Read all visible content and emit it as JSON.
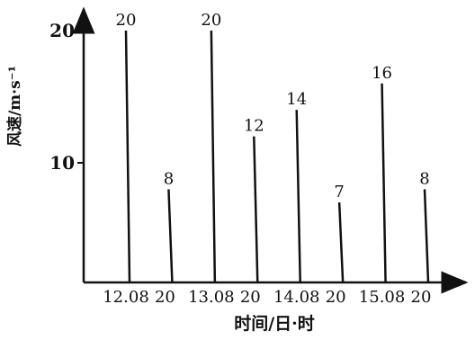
{
  "chart_data": {
    "type": "bar",
    "title": "",
    "xlabel": "时间/日·时",
    "ylabel": "风速/m·s⁻¹",
    "ylim": [
      0,
      22
    ],
    "yticks": [
      {
        "value": 10,
        "label": "10"
      },
      {
        "value": 20,
        "label": "20"
      }
    ],
    "x_dates": [
      {
        "hour": 8,
        "label": "12.08"
      },
      {
        "hour": 32,
        "label": "13.08"
      },
      {
        "hour": 56,
        "label": "14.08"
      },
      {
        "hour": 80,
        "label": "15.08"
      }
    ],
    "x_hours_20": [
      {
        "hour": 20,
        "label": "20"
      },
      {
        "hour": 44,
        "label": "20"
      },
      {
        "hour": 68,
        "label": "20"
      },
      {
        "hour": 92,
        "label": "20"
      }
    ],
    "bars": [
      {
        "hour": 8,
        "value": 20,
        "label": "20"
      },
      {
        "hour": 20,
        "value": 8,
        "label": "8"
      },
      {
        "hour": 32,
        "value": 20,
        "label": "20"
      },
      {
        "hour": 44,
        "value": 12,
        "label": "12"
      },
      {
        "hour": 56,
        "value": 14,
        "label": "14"
      },
      {
        "hour": 68,
        "value": 7,
        "label": "7"
      },
      {
        "hour": 80,
        "value": 16,
        "label": "16"
      },
      {
        "hour": 92,
        "value": 8,
        "label": "8"
      }
    ],
    "colors": {
      "ink": "#111111"
    }
  }
}
